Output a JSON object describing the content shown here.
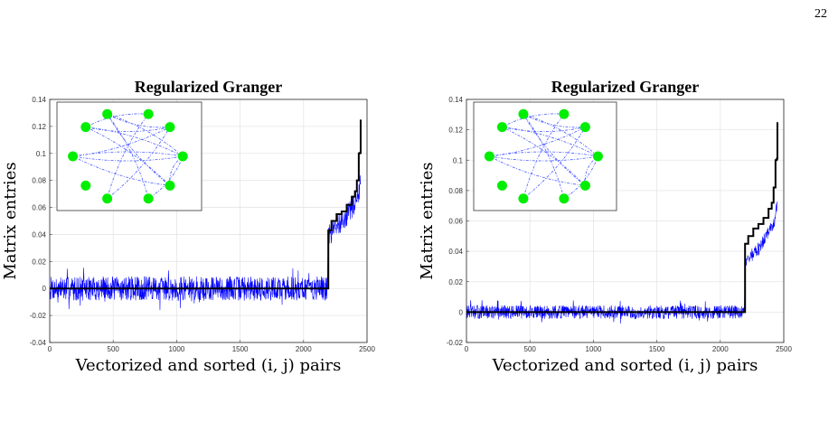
{
  "page_number": "22",
  "colors": {
    "weights": "#0000ff",
    "truth": "#000000",
    "node": "#00ee00",
    "edge": "#4a5cff",
    "grid": "#e5e5e5"
  },
  "chart_data": [
    {
      "type": "line",
      "title": "Regularized Granger",
      "xlabel": "Vectorized and sorted (i, j) pairs",
      "ylabel": "Matrix entries",
      "xlim": [
        0,
        2500
      ],
      "ylim": [
        -0.04,
        0.14
      ],
      "xticks": [
        "0",
        "500",
        "1000",
        "1500",
        "2000",
        "2500"
      ],
      "yticks": [
        "-0.04",
        "-0.02",
        "0",
        "0.02",
        "0.04",
        "0.06",
        "0.08",
        "0.1",
        "0.12",
        "0.14"
      ],
      "grid": true,
      "noise_amplitude": 0.009,
      "series": [
        {
          "color": "blue",
          "x": [
            0,
            2190,
            2195,
            2240,
            2280,
            2320,
            2360,
            2400,
            2430,
            2450
          ],
          "y": [
            0,
            0,
            0.038,
            0.044,
            0.048,
            0.052,
            0.056,
            0.062,
            0.068,
            0.08
          ]
        },
        {
          "color": "black",
          "x": [
            0,
            2190,
            2195,
            2220,
            2260,
            2300,
            2340,
            2380,
            2405,
            2420,
            2435,
            2445,
            2450
          ],
          "y": [
            0,
            0,
            0.043,
            0.05,
            0.055,
            0.057,
            0.062,
            0.068,
            0.072,
            0.08,
            0.1,
            0.1005,
            0.125
          ]
        }
      ],
      "inset": {
        "type": "network",
        "nodes": 10,
        "edges": [
          [
            1,
            3
          ],
          [
            1,
            4
          ],
          [
            1,
            5
          ],
          [
            2,
            4
          ],
          [
            2,
            5
          ],
          [
            0,
            4
          ],
          [
            0,
            5
          ],
          [
            0,
            6
          ],
          [
            5,
            0
          ],
          [
            5,
            6
          ],
          [
            5,
            7
          ],
          [
            6,
            1
          ],
          [
            6,
            2
          ],
          [
            7,
            2
          ],
          [
            8,
            3
          ],
          [
            8,
            4
          ]
        ]
      }
    },
    {
      "type": "line",
      "title": "Regularized Granger",
      "xlabel": "Vectorized and sorted (i, j) pairs",
      "ylabel": "Matrix entries",
      "xlim": [
        0,
        2500
      ],
      "ylim": [
        -0.02,
        0.14
      ],
      "xticks": [
        "0",
        "500",
        "1000",
        "1500",
        "2000",
        "2500"
      ],
      "yticks": [
        "-0.02",
        "0",
        "0.02",
        "0.04",
        "0.06",
        "0.08",
        "0.1",
        "0.12",
        "0.14"
      ],
      "grid": true,
      "noise_amplitude": 0.0045,
      "series": [
        {
          "color": "blue",
          "x": [
            0,
            2190,
            2195,
            2240,
            2280,
            2320,
            2360,
            2400,
            2430,
            2450
          ],
          "y": [
            0,
            0,
            0.032,
            0.036,
            0.04,
            0.044,
            0.05,
            0.055,
            0.06,
            0.075
          ]
        },
        {
          "color": "black",
          "x": [
            0,
            2190,
            2195,
            2220,
            2260,
            2300,
            2340,
            2380,
            2405,
            2420,
            2435,
            2445,
            2450
          ],
          "y": [
            0,
            0,
            0.045,
            0.05,
            0.055,
            0.058,
            0.062,
            0.068,
            0.072,
            0.082,
            0.1,
            0.101,
            0.125
          ]
        }
      ],
      "inset": {
        "type": "network",
        "nodes": 10,
        "edges": [
          [
            1,
            3
          ],
          [
            1,
            4
          ],
          [
            1,
            5
          ],
          [
            2,
            4
          ],
          [
            2,
            5
          ],
          [
            0,
            4
          ],
          [
            0,
            5
          ],
          [
            0,
            6
          ],
          [
            5,
            0
          ],
          [
            5,
            6
          ],
          [
            5,
            7
          ],
          [
            6,
            1
          ],
          [
            6,
            2
          ],
          [
            7,
            2
          ],
          [
            8,
            3
          ],
          [
            8,
            4
          ]
        ]
      }
    }
  ]
}
